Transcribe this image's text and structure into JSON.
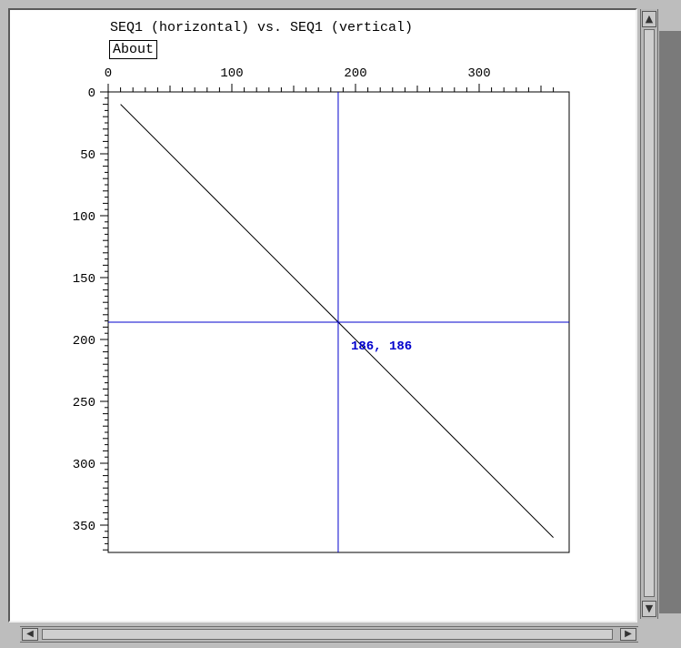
{
  "window": {
    "title": "SEQ1 (horizontal) vs. SEQ1 (vertical)",
    "about_label": "About"
  },
  "chart_data": {
    "type": "line",
    "title": "SEQ1 (horizontal) vs. SEQ1 (vertical)",
    "x_axis": {
      "range": [
        0,
        370
      ],
      "ticks": [
        0,
        100,
        200,
        300
      ],
      "position": "top"
    },
    "y_axis": {
      "range": [
        0,
        370
      ],
      "ticks": [
        0,
        50,
        100,
        150,
        200,
        250,
        300,
        350
      ],
      "inverted": true
    },
    "series": [
      {
        "points": [
          [
            10,
            10
          ],
          [
            360,
            360
          ]
        ],
        "color": "#000000"
      }
    ],
    "cursor": {
      "x": 186,
      "y": 186,
      "label": "186, 186",
      "color": "#0000cc"
    }
  },
  "scrollbars": {
    "vertical": {
      "up_icon": "arrow-up-icon",
      "down_icon": "arrow-down-icon"
    },
    "horizontal": {
      "left_icon": "arrow-left-icon",
      "right_icon": "arrow-right-icon"
    }
  }
}
